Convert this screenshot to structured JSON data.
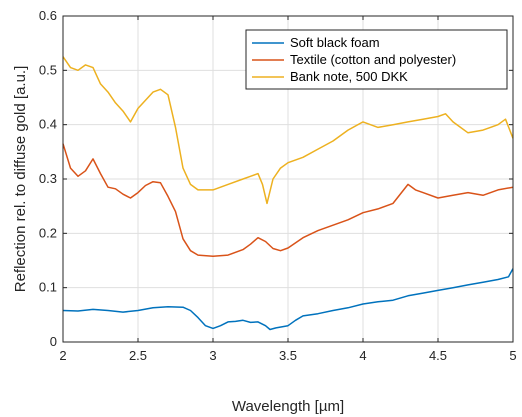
{
  "chart_data": {
    "type": "line",
    "title": "",
    "xlabel": "Wavelength [µm]",
    "ylabel": "Reflection rel. to diffuse gold [a.u.]",
    "xlim": [
      2,
      5
    ],
    "ylim": [
      0,
      0.6
    ],
    "xticks": [
      2,
      2.5,
      3,
      3.5,
      4,
      4.5,
      5
    ],
    "xtick_labels": [
      "2",
      "2.5",
      "3",
      "3.5",
      "4",
      "4.5",
      "5"
    ],
    "yticks": [
      0,
      0.1,
      0.2,
      0.3,
      0.4,
      0.5,
      0.6
    ],
    "ytick_labels": [
      "0",
      "0.1",
      "0.2",
      "0.3",
      "0.4",
      "0.5",
      "0.6"
    ],
    "grid": true,
    "legend_position": "top-right",
    "series": [
      {
        "name": "Soft black foam",
        "color": "#0072BD",
        "points": [
          [
            2.0,
            0.058
          ],
          [
            2.1,
            0.057
          ],
          [
            2.2,
            0.06
          ],
          [
            2.3,
            0.058
          ],
          [
            2.4,
            0.055
          ],
          [
            2.5,
            0.058
          ],
          [
            2.6,
            0.063
          ],
          [
            2.7,
            0.065
          ],
          [
            2.8,
            0.064
          ],
          [
            2.85,
            0.058
          ],
          [
            2.9,
            0.045
          ],
          [
            2.95,
            0.03
          ],
          [
            3.0,
            0.025
          ],
          [
            3.05,
            0.03
          ],
          [
            3.1,
            0.037
          ],
          [
            3.15,
            0.038
          ],
          [
            3.2,
            0.04
          ],
          [
            3.25,
            0.036
          ],
          [
            3.3,
            0.037
          ],
          [
            3.35,
            0.03
          ],
          [
            3.38,
            0.023
          ],
          [
            3.42,
            0.026
          ],
          [
            3.5,
            0.03
          ],
          [
            3.55,
            0.04
          ],
          [
            3.6,
            0.048
          ],
          [
            3.7,
            0.052
          ],
          [
            3.8,
            0.058
          ],
          [
            3.9,
            0.063
          ],
          [
            4.0,
            0.07
          ],
          [
            4.1,
            0.074
          ],
          [
            4.2,
            0.077
          ],
          [
            4.3,
            0.085
          ],
          [
            4.4,
            0.09
          ],
          [
            4.5,
            0.095
          ],
          [
            4.6,
            0.1
          ],
          [
            4.7,
            0.105
          ],
          [
            4.8,
            0.11
          ],
          [
            4.9,
            0.115
          ],
          [
            4.97,
            0.12
          ],
          [
            5.0,
            0.135
          ]
        ]
      },
      {
        "name": "Textile (cotton and polyester)",
        "color": "#D95319",
        "points": [
          [
            2.0,
            0.365
          ],
          [
            2.05,
            0.32
          ],
          [
            2.1,
            0.305
          ],
          [
            2.15,
            0.315
          ],
          [
            2.2,
            0.337
          ],
          [
            2.25,
            0.31
          ],
          [
            2.3,
            0.285
          ],
          [
            2.35,
            0.282
          ],
          [
            2.4,
            0.272
          ],
          [
            2.45,
            0.265
          ],
          [
            2.5,
            0.275
          ],
          [
            2.55,
            0.288
          ],
          [
            2.6,
            0.295
          ],
          [
            2.65,
            0.293
          ],
          [
            2.7,
            0.268
          ],
          [
            2.75,
            0.24
          ],
          [
            2.8,
            0.19
          ],
          [
            2.85,
            0.168
          ],
          [
            2.9,
            0.16
          ],
          [
            3.0,
            0.158
          ],
          [
            3.1,
            0.16
          ],
          [
            3.2,
            0.17
          ],
          [
            3.25,
            0.18
          ],
          [
            3.3,
            0.192
          ],
          [
            3.35,
            0.185
          ],
          [
            3.4,
            0.172
          ],
          [
            3.45,
            0.168
          ],
          [
            3.5,
            0.173
          ],
          [
            3.6,
            0.192
          ],
          [
            3.7,
            0.205
          ],
          [
            3.8,
            0.215
          ],
          [
            3.9,
            0.225
          ],
          [
            4.0,
            0.238
          ],
          [
            4.1,
            0.245
          ],
          [
            4.2,
            0.255
          ],
          [
            4.3,
            0.29
          ],
          [
            4.35,
            0.28
          ],
          [
            4.4,
            0.275
          ],
          [
            4.5,
            0.265
          ],
          [
            4.6,
            0.27
          ],
          [
            4.7,
            0.275
          ],
          [
            4.8,
            0.27
          ],
          [
            4.9,
            0.28
          ],
          [
            5.0,
            0.285
          ]
        ]
      },
      {
        "name": "Bank note, 500 DKK",
        "color": "#EDB120",
        "points": [
          [
            2.0,
            0.525
          ],
          [
            2.05,
            0.505
          ],
          [
            2.1,
            0.5
          ],
          [
            2.15,
            0.51
          ],
          [
            2.2,
            0.505
          ],
          [
            2.25,
            0.475
          ],
          [
            2.3,
            0.46
          ],
          [
            2.35,
            0.44
          ],
          [
            2.4,
            0.425
          ],
          [
            2.45,
            0.405
          ],
          [
            2.5,
            0.43
          ],
          [
            2.55,
            0.445
          ],
          [
            2.6,
            0.46
          ],
          [
            2.65,
            0.465
          ],
          [
            2.7,
            0.455
          ],
          [
            2.75,
            0.395
          ],
          [
            2.8,
            0.32
          ],
          [
            2.85,
            0.29
          ],
          [
            2.9,
            0.28
          ],
          [
            3.0,
            0.28
          ],
          [
            3.1,
            0.29
          ],
          [
            3.2,
            0.3
          ],
          [
            3.25,
            0.305
          ],
          [
            3.3,
            0.31
          ],
          [
            3.33,
            0.29
          ],
          [
            3.36,
            0.255
          ],
          [
            3.4,
            0.3
          ],
          [
            3.45,
            0.32
          ],
          [
            3.5,
            0.33
          ],
          [
            3.6,
            0.34
          ],
          [
            3.7,
            0.355
          ],
          [
            3.8,
            0.37
          ],
          [
            3.9,
            0.39
          ],
          [
            4.0,
            0.405
          ],
          [
            4.1,
            0.395
          ],
          [
            4.2,
            0.4
          ],
          [
            4.3,
            0.405
          ],
          [
            4.4,
            0.41
          ],
          [
            4.5,
            0.415
          ],
          [
            4.55,
            0.42
          ],
          [
            4.6,
            0.405
          ],
          [
            4.7,
            0.385
          ],
          [
            4.8,
            0.39
          ],
          [
            4.9,
            0.4
          ],
          [
            4.95,
            0.41
          ],
          [
            5.0,
            0.375
          ]
        ]
      }
    ]
  }
}
